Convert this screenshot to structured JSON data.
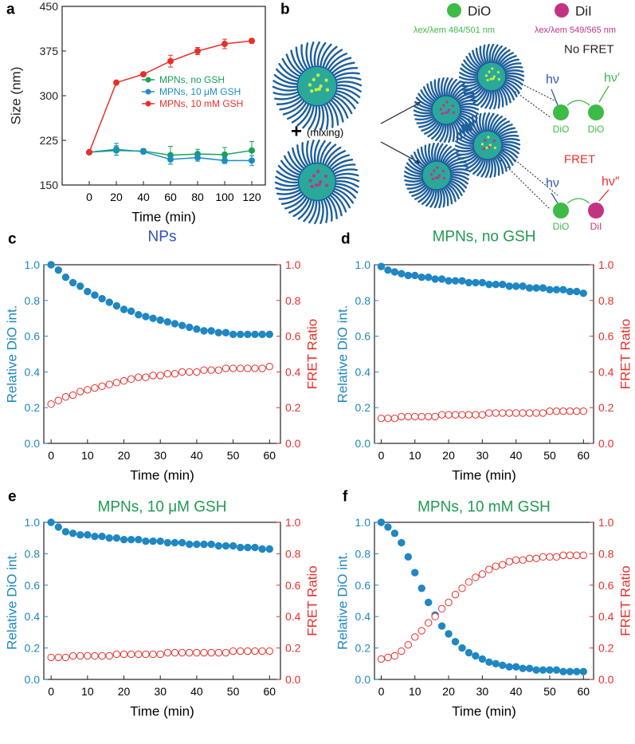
{
  "chart_data": [
    {
      "type": "line",
      "panel": "a",
      "xlabel": "Time (min)",
      "ylabel": "Size (nm)",
      "x": [
        0,
        20,
        40,
        60,
        80,
        100,
        120
      ],
      "xlim": [
        -20,
        130
      ],
      "xticks": [
        0,
        20,
        40,
        60,
        80,
        100,
        120
      ],
      "ylim": [
        150,
        450
      ],
      "yticks": [
        150,
        225,
        300,
        375,
        450
      ],
      "legend": "center right",
      "series": [
        {
          "name": "MPNs, no GSH",
          "color": "#1aa05a",
          "values": [
            205,
            208,
            207,
            200,
            202,
            201,
            208
          ],
          "errors": [
            0,
            8,
            4,
            15,
            8,
            12,
            15
          ]
        },
        {
          "name": "MPNs, 10 μM GSH",
          "color": "#1a8fc4",
          "values": [
            205,
            210,
            206,
            193,
            196,
            191,
            191
          ],
          "errors": [
            0,
            10,
            4,
            8,
            6,
            5,
            8
          ]
        },
        {
          "name": "MPNs, 10 mM GSH",
          "color": "#e8302a",
          "values": [
            205,
            322,
            336,
            358,
            375,
            387,
            392
          ],
          "errors": [
            0,
            0,
            3,
            10,
            6,
            8,
            4
          ]
        }
      ]
    },
    {
      "type": "scatter",
      "panel": "c",
      "title": "NPs",
      "title_color": "#3350b8",
      "xlabel": "Time (min)",
      "ylabel": "Relative DiO int.",
      "y2label": "FRET Ratio",
      "x": [
        0,
        2,
        4,
        6,
        8,
        10,
        12,
        14,
        16,
        18,
        20,
        22,
        24,
        26,
        28,
        30,
        32,
        34,
        36,
        38,
        40,
        42,
        44,
        46,
        48,
        50,
        52,
        54,
        56,
        58,
        60
      ],
      "xlim": [
        -2,
        63
      ],
      "xticks": [
        0,
        10,
        20,
        30,
        40,
        50,
        60
      ],
      "ylim": [
        0,
        1
      ],
      "yticks": [
        {
          "value": 0,
          "label": "0.0"
        },
        0.2,
        0.4,
        0.6,
        0.8,
        {
          "value": 1,
          "label": "1.0"
        }
      ],
      "y2lim": [
        0,
        1
      ],
      "y2ticks": [
        {
          "value": 0,
          "label": "0.0"
        },
        0.2,
        0.4,
        0.6,
        0.8,
        {
          "value": 1,
          "label": "1.0"
        }
      ],
      "series": [
        {
          "color": "#1f87c2",
          "marker": "filled",
          "values": [
            1.0,
            0.97,
            0.93,
            0.9,
            0.88,
            0.85,
            0.83,
            0.81,
            0.79,
            0.77,
            0.75,
            0.74,
            0.72,
            0.71,
            0.7,
            0.69,
            0.68,
            0.67,
            0.66,
            0.65,
            0.64,
            0.63,
            0.63,
            0.62,
            0.62,
            0.61,
            0.61,
            0.61,
            0.61,
            0.61,
            0.61
          ]
        },
        {
          "color": "#e8302a",
          "marker": "open",
          "axis": "y2",
          "values": [
            0.22,
            0.24,
            0.26,
            0.27,
            0.29,
            0.3,
            0.31,
            0.32,
            0.33,
            0.34,
            0.35,
            0.36,
            0.37,
            0.37,
            0.38,
            0.38,
            0.39,
            0.39,
            0.4,
            0.4,
            0.4,
            0.41,
            0.41,
            0.41,
            0.42,
            0.42,
            0.42,
            0.42,
            0.42,
            0.42,
            0.43
          ]
        }
      ]
    },
    {
      "type": "scatter",
      "panel": "d",
      "title": "MPNs, no GSH",
      "title_color": "#1f9a50",
      "xlabel": "Time (min)",
      "ylabel": "Relative DiO int.",
      "y2label": "FRET Ratio",
      "x": [
        0,
        2,
        4,
        6,
        8,
        10,
        12,
        14,
        16,
        18,
        20,
        22,
        24,
        26,
        28,
        30,
        32,
        34,
        36,
        38,
        40,
        42,
        44,
        46,
        48,
        50,
        52,
        54,
        56,
        58,
        60
      ],
      "xlim": [
        -2,
        63
      ],
      "xticks": [
        0,
        10,
        20,
        30,
        40,
        50,
        60
      ],
      "ylim": [
        0,
        1
      ],
      "yticks": [
        {
          "value": 0,
          "label": "0.0"
        },
        0.2,
        0.4,
        0.6,
        0.8,
        {
          "value": 1,
          "label": "1.0"
        }
      ],
      "y2lim": [
        0,
        1
      ],
      "y2ticks": [
        {
          "value": 0,
          "label": "0.0"
        },
        0.2,
        0.4,
        0.6,
        0.8,
        {
          "value": 1,
          "label": "1.0"
        }
      ],
      "series": [
        {
          "color": "#1f87c2",
          "marker": "filled",
          "values": [
            0.99,
            0.97,
            0.96,
            0.95,
            0.94,
            0.94,
            0.93,
            0.93,
            0.92,
            0.92,
            0.91,
            0.91,
            0.91,
            0.9,
            0.9,
            0.9,
            0.89,
            0.89,
            0.89,
            0.88,
            0.88,
            0.88,
            0.87,
            0.87,
            0.87,
            0.86,
            0.86,
            0.86,
            0.85,
            0.85,
            0.84
          ]
        },
        {
          "color": "#e8302a",
          "marker": "open",
          "axis": "y2",
          "values": [
            0.14,
            0.14,
            0.14,
            0.15,
            0.15,
            0.15,
            0.15,
            0.15,
            0.15,
            0.16,
            0.16,
            0.16,
            0.16,
            0.16,
            0.16,
            0.16,
            0.17,
            0.17,
            0.17,
            0.17,
            0.17,
            0.17,
            0.17,
            0.17,
            0.17,
            0.18,
            0.18,
            0.18,
            0.18,
            0.18,
            0.18
          ]
        }
      ]
    },
    {
      "type": "scatter",
      "panel": "e",
      "title": "MPNs, 10 μM GSH",
      "title_color": "#1f9a50",
      "xlabel": "Time (min)",
      "ylabel": "Relative DiO int.",
      "y2label": "FRET Ratio",
      "x": [
        0,
        2,
        4,
        6,
        8,
        10,
        12,
        14,
        16,
        18,
        20,
        22,
        24,
        26,
        28,
        30,
        32,
        34,
        36,
        38,
        40,
        42,
        44,
        46,
        48,
        50,
        52,
        54,
        56,
        58,
        60
      ],
      "xlim": [
        -2,
        63
      ],
      "xticks": [
        0,
        10,
        20,
        30,
        40,
        50,
        60
      ],
      "ylim": [
        0,
        1
      ],
      "yticks": [
        {
          "value": 0,
          "label": "0.0"
        },
        0.2,
        0.4,
        0.6,
        0.8,
        {
          "value": 1,
          "label": "1.0"
        }
      ],
      "y2lim": [
        0,
        1
      ],
      "y2ticks": [
        {
          "value": 0,
          "label": "0.0"
        },
        0.2,
        0.4,
        0.6,
        0.8,
        {
          "value": 1,
          "label": "1.0"
        }
      ],
      "series": [
        {
          "color": "#1f87c2",
          "marker": "filled",
          "values": [
            1.0,
            0.97,
            0.94,
            0.93,
            0.92,
            0.92,
            0.91,
            0.91,
            0.9,
            0.9,
            0.89,
            0.89,
            0.89,
            0.88,
            0.88,
            0.88,
            0.87,
            0.87,
            0.87,
            0.86,
            0.86,
            0.86,
            0.86,
            0.85,
            0.85,
            0.85,
            0.84,
            0.84,
            0.84,
            0.83,
            0.83
          ]
        },
        {
          "color": "#e8302a",
          "marker": "open",
          "axis": "y2",
          "values": [
            0.14,
            0.14,
            0.14,
            0.15,
            0.15,
            0.15,
            0.15,
            0.15,
            0.15,
            0.16,
            0.16,
            0.16,
            0.16,
            0.16,
            0.16,
            0.16,
            0.17,
            0.17,
            0.17,
            0.17,
            0.17,
            0.17,
            0.17,
            0.17,
            0.17,
            0.18,
            0.18,
            0.18,
            0.18,
            0.18,
            0.18
          ]
        }
      ]
    },
    {
      "type": "scatter",
      "panel": "f",
      "title": "MPNs, 10 mM GSH",
      "title_color": "#1f9a50",
      "xlabel": "Time (min)",
      "ylabel": "Relative DiO int.",
      "y2label": "FRET Ratio",
      "x": [
        0,
        2,
        4,
        6,
        8,
        10,
        12,
        14,
        16,
        18,
        20,
        22,
        24,
        26,
        28,
        30,
        32,
        34,
        36,
        38,
        40,
        42,
        44,
        46,
        48,
        50,
        52,
        54,
        56,
        58,
        60
      ],
      "xlim": [
        -2,
        63
      ],
      "xticks": [
        0,
        10,
        20,
        30,
        40,
        50,
        60
      ],
      "ylim": [
        0,
        1
      ],
      "yticks": [
        {
          "value": 0,
          "label": "0.0"
        },
        0.2,
        0.4,
        0.6,
        0.8,
        {
          "value": 1,
          "label": "1.0"
        }
      ],
      "y2lim": [
        0,
        1
      ],
      "y2ticks": [
        {
          "value": 0,
          "label": "0.0"
        },
        0.2,
        0.4,
        0.6,
        0.8,
        {
          "value": 1,
          "label": "1.0"
        }
      ],
      "series": [
        {
          "color": "#1f87c2",
          "marker": "filled",
          "values": [
            1.0,
            0.97,
            0.93,
            0.87,
            0.78,
            0.68,
            0.58,
            0.49,
            0.41,
            0.34,
            0.29,
            0.24,
            0.2,
            0.17,
            0.15,
            0.13,
            0.11,
            0.1,
            0.09,
            0.08,
            0.08,
            0.07,
            0.07,
            0.06,
            0.06,
            0.06,
            0.06,
            0.05,
            0.05,
            0.05,
            0.05
          ]
        },
        {
          "color": "#e8302a",
          "marker": "open",
          "axis": "y2",
          "values": [
            0.13,
            0.14,
            0.15,
            0.18,
            0.22,
            0.27,
            0.31,
            0.36,
            0.4,
            0.45,
            0.49,
            0.54,
            0.58,
            0.62,
            0.65,
            0.67,
            0.7,
            0.72,
            0.73,
            0.75,
            0.76,
            0.76,
            0.77,
            0.77,
            0.78,
            0.78,
            0.78,
            0.79,
            0.79,
            0.79,
            0.79
          ]
        }
      ]
    }
  ],
  "diagram": {
    "panel": "b",
    "dio": "DiO",
    "dio_spec": "λex/λem 484/501 nm",
    "dii": "DiI",
    "dii_spec": "λex/λem 549/565 nm",
    "plus": "+",
    "mixing": "(mixing)",
    "no_fret": "No FRET",
    "fret": "FRET",
    "hv_in_1": "hν",
    "hv_out_1": "hν′",
    "hv_in_2": "hν",
    "hv_out_2": "hν″",
    "donor_1": "DiO",
    "acceptor_1": "DiO",
    "donor_2": "DiO",
    "acceptor_2": "DiI"
  }
}
